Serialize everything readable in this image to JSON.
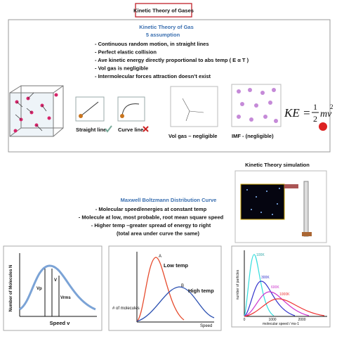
{
  "header": {
    "title": "Kinetic Theory of Gases"
  },
  "assumptions": {
    "heading": "Kinetic Theory of Gas",
    "subheading": "5 assumption",
    "items": [
      "- Continuous random motion, in straight lines",
      "- Perfect elastic collision",
      "- Ave kinetic energy directly proportional to abs temp ( E α T )",
      "- Vol gas is negligible",
      "- Intermolecular forces attraction doesn’t exist"
    ],
    "figures": {
      "straight_line": "Straight line",
      "curve_line": "Curve line",
      "vol_gas": "Vol gas – negligible",
      "imf": "IMF - (negligible)"
    },
    "formula": {
      "lhs": "KE =",
      "numerator": "1",
      "denominator": "2",
      "term": "mv",
      "exponent": "2"
    }
  },
  "simulation": {
    "title": "Kinetic Theory simulation"
  },
  "distribution": {
    "heading": "Maxwell Boltzmann Distribution Curve",
    "items": [
      "- Molecular speed/energies at constant temp",
      "- Molecule at low, most probable, root mean square speed",
      "- Higher temp –greater spread of energy to  right",
      "(total area under curve the same)"
    ],
    "graph1": {
      "y_label": "Number of Molecules N",
      "x_label": "Speed v",
      "vp": "Vp",
      "vavg": "V",
      "vrms": "Vrms"
    },
    "graph2": {
      "curve_a": "A",
      "curve_b": "B",
      "low": "Low temp",
      "high": "High temp",
      "y_label": "# of molecules",
      "x_label": "Speed"
    },
    "graph3": {
      "t1": "100K",
      "t2": "300K",
      "t3": "600K",
      "t4": "1000K",
      "y_label": "number of particles",
      "x_label": "molecular speed / ms-1",
      "x0": "0",
      "x1": "1000",
      "x2": "2000"
    }
  }
}
